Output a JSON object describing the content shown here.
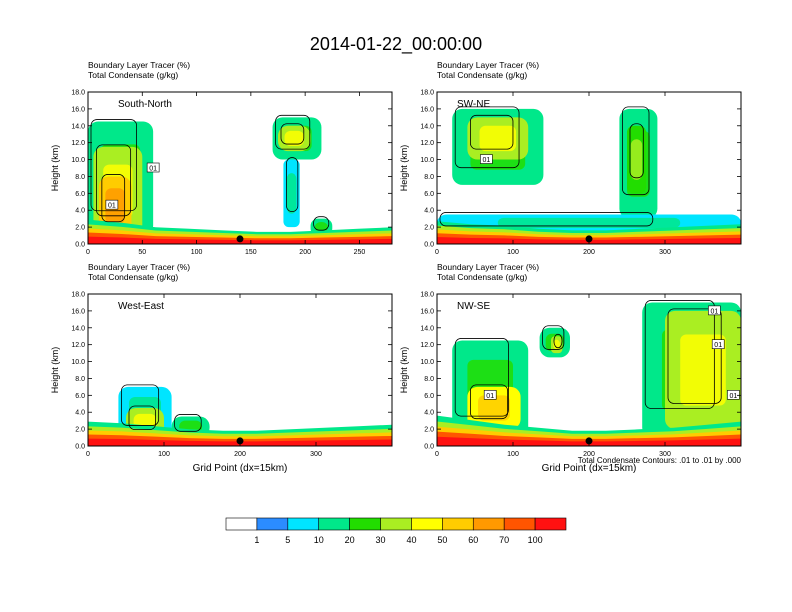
{
  "title": "2014-01-22_00:00:00",
  "colors": {
    "levels": [
      "#ffffff",
      "#2b8cff",
      "#00e5ff",
      "#00e88a",
      "#22dd00",
      "#aaee22",
      "#ffff00",
      "#ffcc00",
      "#ff9900",
      "#ff5500",
      "#ff1111"
    ],
    "contour": "#000000"
  },
  "colorbar_labels": [
    "1",
    "5",
    "10",
    "20",
    "30",
    "40",
    "50",
    "60",
    "70",
    "100"
  ],
  "contour_note": "Total Condensate Contours: .01 to .01 by .000",
  "chart_data": [
    {
      "type": "heatmap",
      "panel": "South-North",
      "header": [
        "Boundary Layer Tracer   (%)",
        "Total Condensate   (g/kg)"
      ],
      "xlabel": "",
      "ylabel": "Height (km)",
      "xlim": [
        0,
        280
      ],
      "ylim": [
        0,
        18
      ],
      "xticks": [
        0,
        50,
        100,
        150,
        200,
        250
      ],
      "yticks": [
        0,
        2,
        4,
        6,
        8,
        10,
        12,
        14,
        16,
        18
      ],
      "marker_x": 140,
      "contour_labels": [
        {
          "text": "01",
          "x": 22,
          "y": 4.6
        },
        {
          "text": "01",
          "x": 60,
          "y": 9
        }
      ],
      "plumes": [
        {
          "x0": 0,
          "x1": 60,
          "y0": 1,
          "y1": 14.5,
          "level": 3
        },
        {
          "x0": 5,
          "x1": 50,
          "y0": 1,
          "y1": 11.5,
          "level": 5
        },
        {
          "x0": 10,
          "x1": 40,
          "y0": 1,
          "y1": 8,
          "level": 7
        },
        {
          "x0": 170,
          "x1": 215,
          "y0": 10,
          "y1": 15,
          "level": 3
        },
        {
          "x0": 175,
          "x1": 205,
          "y0": 11,
          "y1": 14,
          "level": 5
        },
        {
          "x0": 180,
          "x1": 195,
          "y0": 2,
          "y1": 10,
          "level": 2
        },
        {
          "x0": 205,
          "x1": 225,
          "y0": 1,
          "y1": 3,
          "level": 3
        }
      ],
      "boundary_layer": [
        1.6,
        1.4,
        1.1,
        1.0,
        0.9,
        0.8,
        0.8,
        0.9,
        1.0,
        1.1
      ]
    },
    {
      "type": "heatmap",
      "panel": "SW-NE",
      "header": [
        "Boundary Layer Tracer   (%)",
        "Total Condensate   (g/kg)"
      ],
      "xlabel": "",
      "ylabel": "Height (km)",
      "xlim": [
        0,
        400
      ],
      "ylim": [
        0,
        18
      ],
      "xticks": [
        0,
        100,
        200,
        300
      ],
      "yticks": [
        0,
        2,
        4,
        6,
        8,
        10,
        12,
        14,
        16,
        18
      ],
      "marker_x": 200,
      "contour_labels": [
        {
          "text": "01",
          "x": 65,
          "y": 10
        }
      ],
      "plumes": [
        {
          "x0": 20,
          "x1": 140,
          "y0": 7,
          "y1": 16,
          "level": 3
        },
        {
          "x0": 40,
          "x1": 120,
          "y0": 10,
          "y1": 15,
          "level": 5
        },
        {
          "x0": 240,
          "x1": 290,
          "y0": 3,
          "y1": 16,
          "level": 3
        },
        {
          "x0": 250,
          "x1": 275,
          "y0": 6,
          "y1": 14,
          "level": 4
        },
        {
          "x0": 0,
          "x1": 400,
          "y0": 1.5,
          "y1": 3.5,
          "level": 2
        }
      ],
      "boundary_layer": [
        1.5,
        1.3,
        1.2,
        1.0,
        0.9,
        0.9,
        1.0,
        1.1,
        1.2,
        1.3
      ]
    },
    {
      "type": "heatmap",
      "panel": "West-East",
      "header": [
        "Boundary Layer Tracer   (%)",
        "Total Condensate   (g/kg)"
      ],
      "xlabel": "Grid Point (dx=15km)",
      "ylabel": "Height (km)",
      "xlim": [
        0,
        400
      ],
      "ylim": [
        0,
        18
      ],
      "xticks": [
        0,
        100,
        200,
        300
      ],
      "yticks": [
        0,
        2,
        4,
        6,
        8,
        10,
        12,
        14,
        16,
        18
      ],
      "marker_x": 200,
      "contour_labels": [],
      "plumes": [
        {
          "x0": 40,
          "x1": 110,
          "y0": 1,
          "y1": 7,
          "level": 2
        },
        {
          "x0": 50,
          "x1": 100,
          "y0": 1,
          "y1": 4.5,
          "level": 5
        },
        {
          "x0": 110,
          "x1": 160,
          "y0": 1,
          "y1": 3.5,
          "level": 3
        }
      ],
      "boundary_layer": [
        1.6,
        1.5,
        1.3,
        1.1,
        1.0,
        1.0,
        1.1,
        1.2,
        1.3,
        1.4
      ]
    },
    {
      "type": "heatmap",
      "panel": "NW-SE",
      "header": [
        "Boundary Layer Tracer   (%)",
        "Total Condensate   (g/kg)"
      ],
      "xlabel": "Grid Point (dx=15km)",
      "ylabel": "Height (km)",
      "xlim": [
        0,
        400
      ],
      "ylim": [
        0,
        18
      ],
      "xticks": [
        0,
        100,
        200,
        300
      ],
      "yticks": [
        0,
        2,
        4,
        6,
        8,
        10,
        12,
        14,
        16,
        18
      ],
      "marker_x": 200,
      "contour_labels": [
        {
          "text": "01",
          "x": 70,
          "y": 6
        },
        {
          "text": "01",
          "x": 365,
          "y": 16
        },
        {
          "text": "01",
          "x": 370,
          "y": 12
        },
        {
          "text": "01",
          "x": 390,
          "y": 6
        }
      ],
      "plumes": [
        {
          "x0": 20,
          "x1": 120,
          "y0": 1,
          "y1": 12.5,
          "level": 3
        },
        {
          "x0": 40,
          "x1": 110,
          "y0": 2,
          "y1": 7,
          "level": 6
        },
        {
          "x0": 270,
          "x1": 400,
          "y0": 1,
          "y1": 17,
          "level": 3
        },
        {
          "x0": 300,
          "x1": 400,
          "y0": 2,
          "y1": 16,
          "level": 5
        },
        {
          "x0": 135,
          "x1": 175,
          "y0": 10.5,
          "y1": 14,
          "level": 3
        },
        {
          "x0": 150,
          "x1": 165,
          "y0": 11,
          "y1": 13,
          "level": 5
        }
      ],
      "boundary_layer": [
        2.0,
        1.7,
        1.4,
        1.2,
        1.0,
        1.0,
        1.1,
        1.2,
        1.4,
        1.6
      ]
    }
  ]
}
